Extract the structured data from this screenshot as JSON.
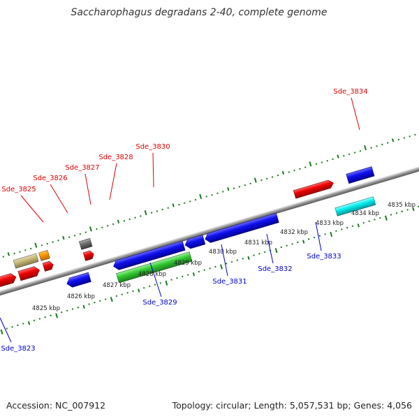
{
  "title": "Saccharophagus degradans 2-40, complete genome",
  "accession": "Accession: NC_007912",
  "genome_info": "Topology: circular; Length: 5,057,531 bp; Genes: 4,056",
  "colors": {
    "forward_label": "#dd0000",
    "reverse_label": "#0000cc",
    "tick": "#1a7a1a",
    "backbone": "#888888"
  },
  "kbp_labels": [
    "4825 kbp",
    "4826 kbp",
    "4827 kbp",
    "4828 kbp",
    "4829 kbp",
    "4830 kbp",
    "4831 kbp",
    "4832 kbp",
    "4833 kbp",
    "4834 kbp",
    "4835 kbp"
  ],
  "gene_labels": [
    {
      "id": "sde3823",
      "text": "Sde_3823",
      "strand": "reverse"
    },
    {
      "id": "sde3825",
      "text": "Sde_3825",
      "strand": "forward"
    },
    {
      "id": "sde3826",
      "text": "Sde_3826",
      "strand": "forward"
    },
    {
      "id": "sde3827",
      "text": "Sde_3827",
      "strand": "forward"
    },
    {
      "id": "sde3828",
      "text": "Sde_3828",
      "strand": "forward"
    },
    {
      "id": "sde3829",
      "text": "Sde_3829",
      "strand": "reverse"
    },
    {
      "id": "sde3830",
      "text": "Sde_3830",
      "strand": "forward"
    },
    {
      "id": "sde3831",
      "text": "Sde_3831",
      "strand": "reverse"
    },
    {
      "id": "sde3832",
      "text": "Sde_3832",
      "strand": "reverse"
    },
    {
      "id": "sde3833",
      "text": "Sde_3833",
      "strand": "reverse"
    },
    {
      "id": "sde3834",
      "text": "Sde_3834",
      "strand": "forward"
    }
  ]
}
